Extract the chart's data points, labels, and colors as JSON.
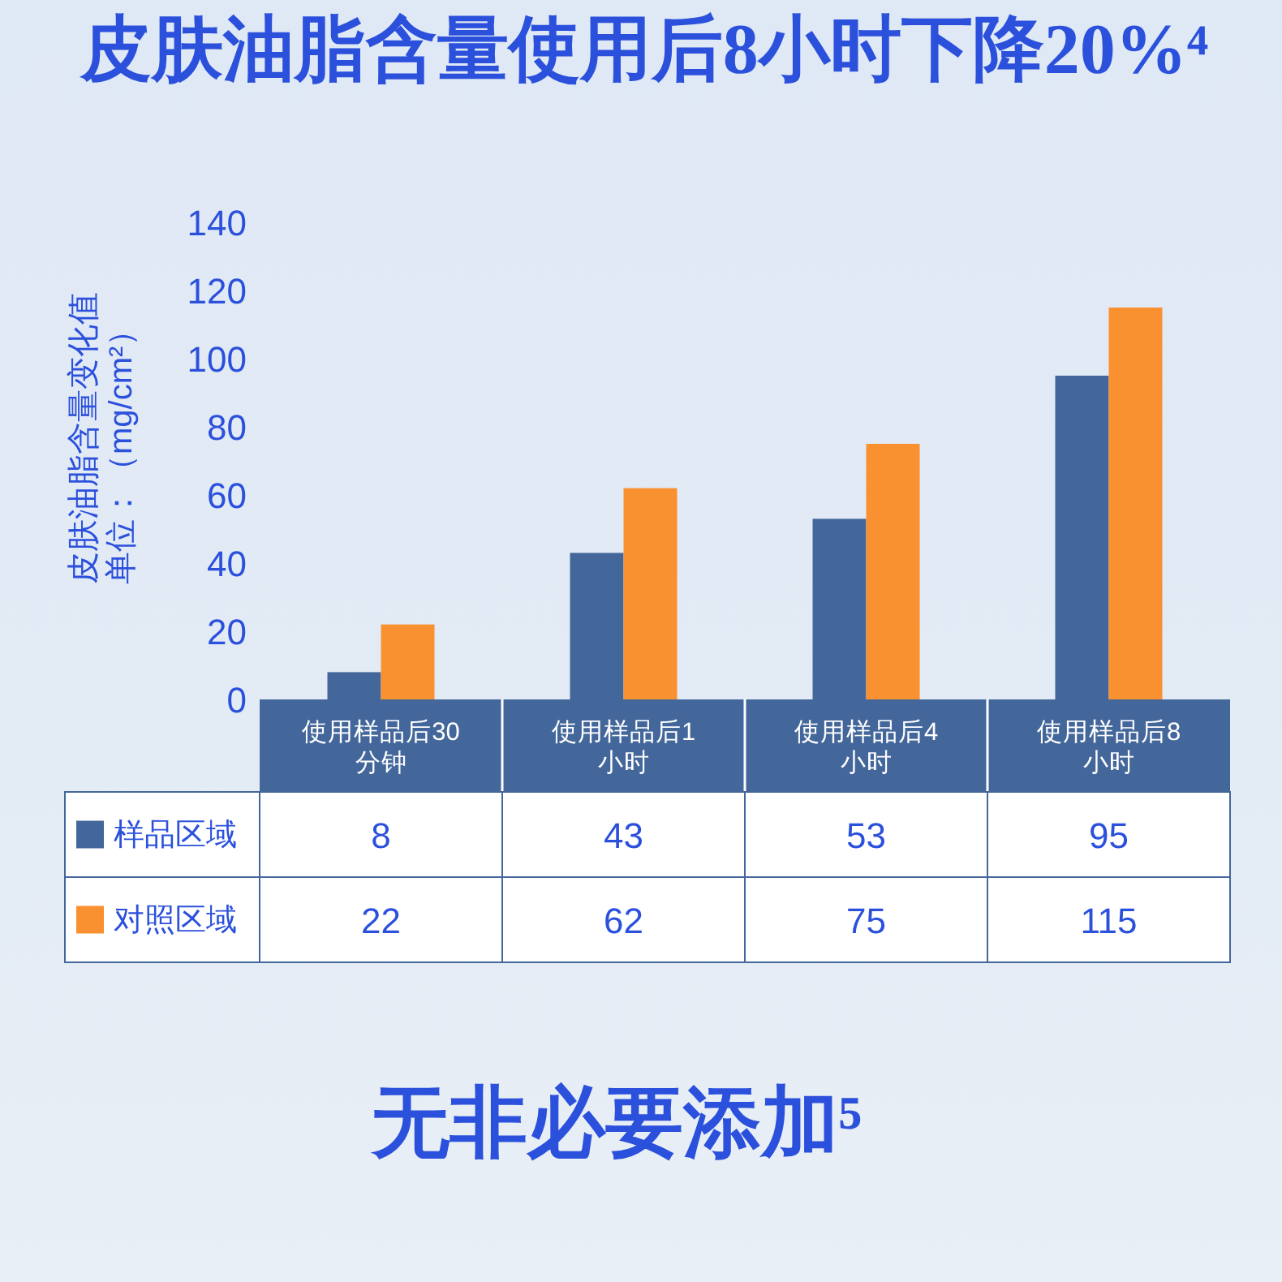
{
  "chart_data": {
    "type": "bar",
    "title": "皮肤油脂含量使用后8小时下降20%⁴",
    "ylabel": "皮肤油脂含量变化值单位：（mg/cm²）",
    "categories": [
      "使用样品后30分钟",
      "使用样品后1小时",
      "使用样品后4小时",
      "使用样品后8小时"
    ],
    "series": [
      {
        "name": "样品区域",
        "color": "#44679b",
        "values": [
          8,
          43,
          53,
          95
        ]
      },
      {
        "name": "对照区域",
        "color": "#f99130",
        "values": [
          22,
          62,
          75,
          115
        ]
      }
    ],
    "ylim": [
      0,
      140
    ],
    "yticks": [
      0,
      20,
      40,
      60,
      80,
      100,
      120,
      140
    ],
    "data_labels": true,
    "legend": "bottom",
    "annotations": [
      "无非必要添加⁵"
    ]
  }
}
